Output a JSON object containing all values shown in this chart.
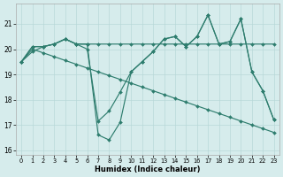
{
  "xlabel": "Humidex (Indice chaleur)",
  "background_color": "#d6ecec",
  "grid_color": "#b8d8d8",
  "line_color": "#2e7d6e",
  "xlim": [
    -0.5,
    23.5
  ],
  "ylim": [
    15.8,
    21.8
  ],
  "yticks": [
    16,
    17,
    18,
    19,
    20,
    21
  ],
  "xticks": [
    0,
    1,
    2,
    3,
    4,
    5,
    6,
    7,
    8,
    9,
    10,
    11,
    12,
    13,
    14,
    15,
    16,
    17,
    18,
    19,
    20,
    21,
    22,
    23
  ],
  "series": [
    [
      19.5,
      19.9,
      20.1,
      20.2,
      20.4,
      20.2,
      20.2,
      16.6,
      16.4,
      17.1,
      19.1,
      19.5,
      19.9,
      20.4,
      20.5,
      20.1,
      20.5,
      21.35,
      20.2,
      20.3,
      21.2,
      19.1,
      18.35,
      17.2
    ],
    [
      19.5,
      20.1,
      20.1,
      20.2,
      20.4,
      20.2,
      20.2,
      20.2,
      20.2,
      20.2,
      20.2,
      20.2,
      20.2,
      20.2,
      20.2,
      20.2,
      20.2,
      20.2,
      20.2,
      20.2,
      20.2,
      20.2,
      20.2,
      20.2
    ],
    [
      19.5,
      20.0,
      19.85,
      19.7,
      19.55,
      19.4,
      19.25,
      19.1,
      18.95,
      18.8,
      18.65,
      18.5,
      18.35,
      18.2,
      18.05,
      17.9,
      17.75,
      17.6,
      17.45,
      17.3,
      17.15,
      17.0,
      16.85,
      16.7
    ],
    [
      19.5,
      20.1,
      20.1,
      20.2,
      20.4,
      20.2,
      20.0,
      17.15,
      17.55,
      18.3,
      19.1,
      19.5,
      19.9,
      20.4,
      20.5,
      20.1,
      20.5,
      21.35,
      20.2,
      20.3,
      21.2,
      19.1,
      18.35,
      17.2
    ]
  ],
  "marker_style": "D",
  "marker_size": 2.0,
  "line_width": 0.85
}
